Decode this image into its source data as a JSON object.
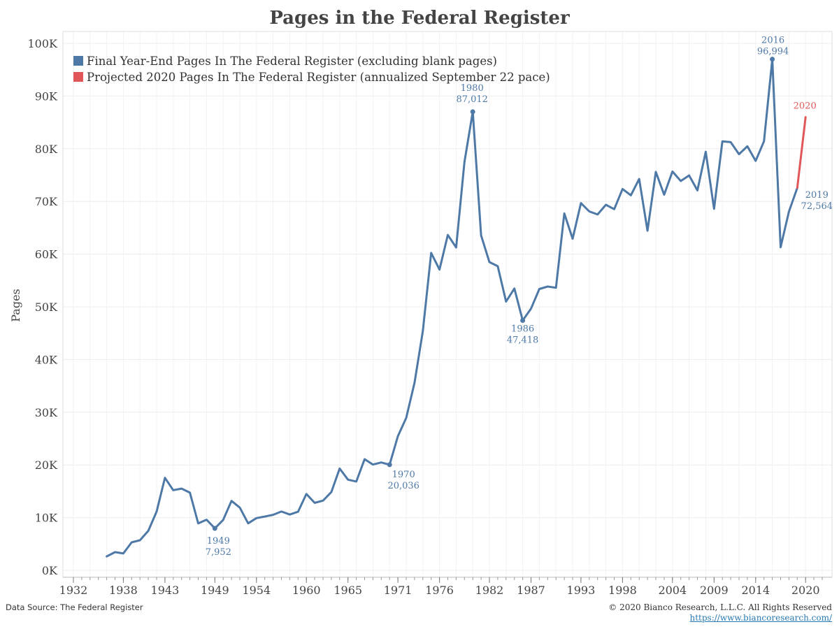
{
  "chart_data": {
    "type": "line",
    "title": "Pages in the Federal Register",
    "ylabel": "Pages",
    "ylim": [
      0,
      100000
    ],
    "xlim": [
      1932,
      2022
    ],
    "y_ticks": [
      0,
      10000,
      20000,
      30000,
      40000,
      50000,
      60000,
      70000,
      80000,
      90000,
      100000
    ],
    "y_tick_labels": [
      "0K",
      "10K",
      "20K",
      "30K",
      "40K",
      "50K",
      "60K",
      "70K",
      "80K",
      "90K",
      "100K"
    ],
    "x_ticks": [
      1932,
      1938,
      1943,
      1949,
      1954,
      1960,
      1965,
      1971,
      1976,
      1982,
      1987,
      1993,
      1998,
      2004,
      2009,
      2014,
      2020
    ],
    "x_tick_labels": [
      "1932",
      "1938",
      "1943",
      "1949",
      "1954",
      "1960",
      "1965",
      "1971",
      "1976",
      "1982",
      "1987",
      "1993",
      "1998",
      "2004",
      "2009",
      "2014",
      "2020"
    ],
    "grid": true,
    "legend_position": "top-left",
    "legend": [
      {
        "label": "Final Year-End Pages In The Federal Register (excluding blank pages)",
        "color": "#4e79a7"
      },
      {
        "label": "Projected 2020 Pages In The Federal Register (annualized September 22 pace)",
        "color": "#e15759"
      }
    ],
    "series": [
      {
        "name": "Final Year-End Pages In The Federal Register (excluding blank pages)",
        "color": "#4e79a7",
        "x": [
          1936,
          1937,
          1938,
          1939,
          1940,
          1941,
          1942,
          1943,
          1944,
          1945,
          1946,
          1947,
          1948,
          1949,
          1950,
          1951,
          1952,
          1953,
          1954,
          1955,
          1956,
          1957,
          1958,
          1959,
          1960,
          1961,
          1962,
          1963,
          1964,
          1965,
          1966,
          1967,
          1968,
          1969,
          1970,
          1971,
          1972,
          1973,
          1974,
          1975,
          1976,
          1977,
          1978,
          1979,
          1980,
          1981,
          1982,
          1983,
          1984,
          1985,
          1986,
          1987,
          1988,
          1989,
          1990,
          1991,
          1992,
          1993,
          1994,
          1995,
          1996,
          1997,
          1998,
          1999,
          2000,
          2001,
          2002,
          2003,
          2004,
          2005,
          2006,
          2007,
          2008,
          2009,
          2010,
          2011,
          2012,
          2013,
          2014,
          2015,
          2016,
          2017,
          2018,
          2019
        ],
        "y": [
          2620,
          3450,
          3194,
          5307,
          5700,
          7500,
          11134,
          17553,
          15194,
          15508,
          14736,
          8902,
          9608,
          7952,
          9562,
          13175,
          11896,
          8912,
          9910,
          10196,
          10528,
          11156,
          10579,
          11116,
          14479,
          12792,
          13226,
          14842,
          19304,
          17206,
          16850,
          21088,
          20068,
          20464,
          20036,
          25447,
          28924,
          35592,
          45422,
          60221,
          57072,
          63629,
          61261,
          77498,
          87012,
          63554,
          58494,
          57704,
          50997,
          53480,
          47418,
          49654,
          53376,
          53842,
          53620,
          67716,
          62919,
          69688,
          68108,
          67518,
          69368,
          68530,
          72356,
          71161,
          74258,
          64438,
          75606,
          71269,
          75675,
          73870,
          74937,
          72090,
          79435,
          68598,
          81405,
          81247,
          78961,
          80462,
          77687,
          81402,
          96994,
          61308,
          68082,
          72564
        ]
      },
      {
        "name": "Projected 2020 Pages In The Federal Register (annualized September 22 pace)",
        "color": "#e15759",
        "x": [
          2019,
          2020
        ],
        "y": [
          72564,
          86000
        ]
      }
    ],
    "annotations": [
      {
        "year": "1949",
        "value": "7,952"
      },
      {
        "year": "1970",
        "value": "20,036"
      },
      {
        "year": "1980",
        "value": "87,012"
      },
      {
        "year": "1986",
        "value": "47,418"
      },
      {
        "year": "2016",
        "value": "96,994"
      },
      {
        "year": "2019",
        "value": "72,564"
      },
      {
        "year": "2020",
        "value": ""
      }
    ]
  },
  "footer": {
    "source": "Data Source: The Federal Register",
    "copyright": "© 2020 Bianco Research, L.L.C. All Rights Reserved",
    "link": "https://www.biancoresearch.com/"
  }
}
